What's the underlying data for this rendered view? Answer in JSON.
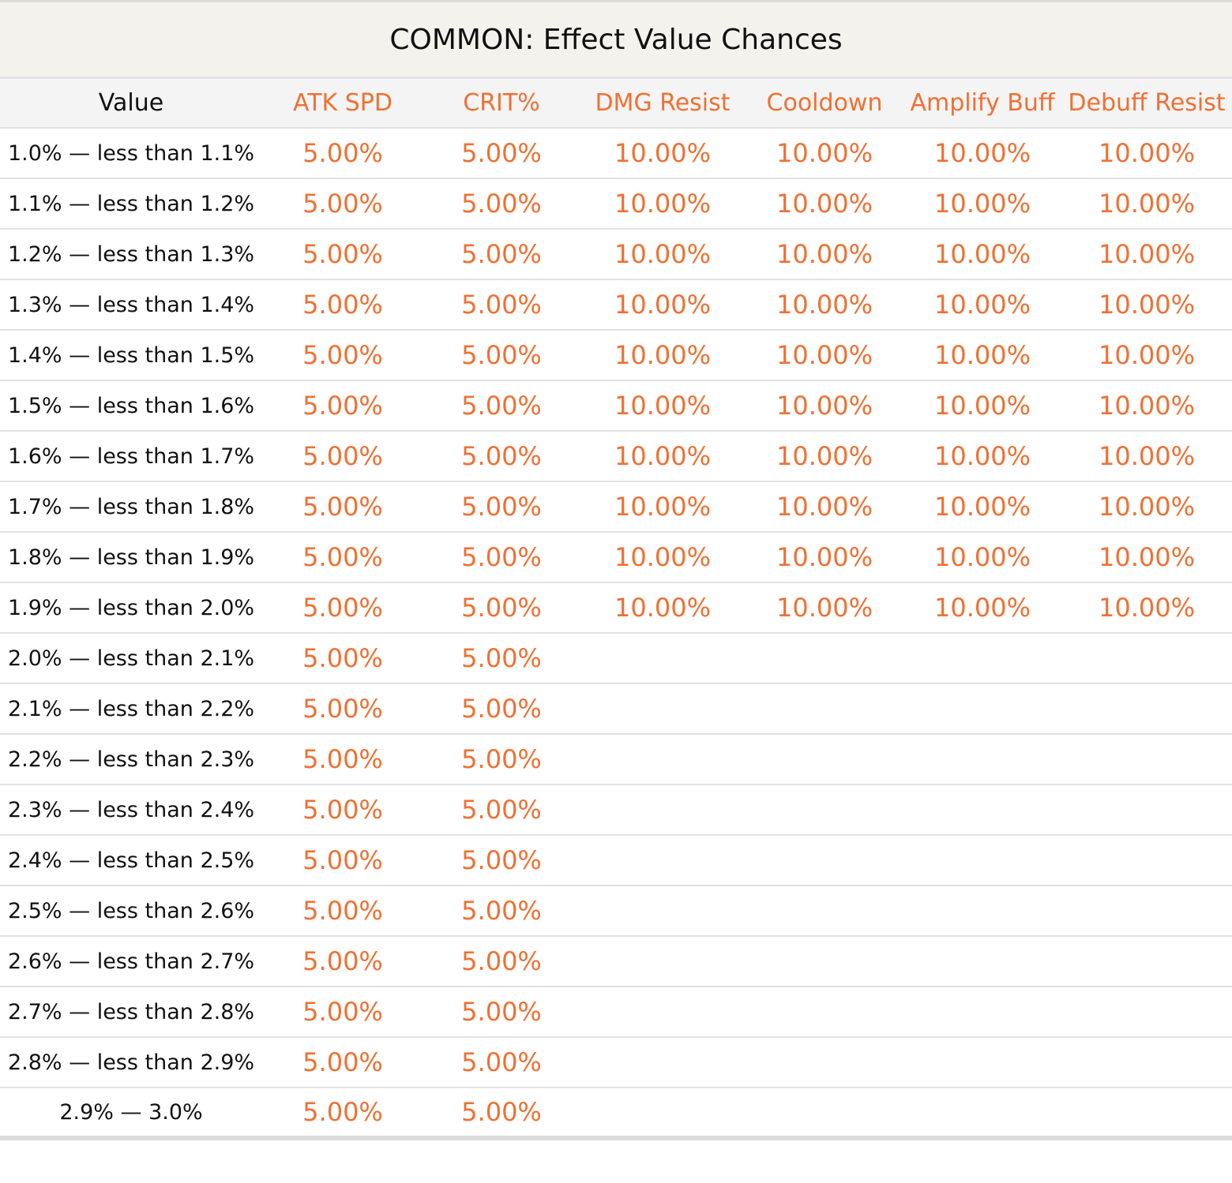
{
  "title": "COMMON: Effect Value Chances",
  "columns": [
    "Value",
    "ATK SPD",
    "CRIT%",
    "DMG Resist",
    "Cooldown",
    "Amplify Buff",
    "Debuff Resist"
  ],
  "rows": [
    {
      "value": "1.0% — less than 1.1%",
      "cells": [
        "5.00%",
        "5.00%",
        "10.00%",
        "10.00%",
        "10.00%",
        "10.00%"
      ]
    },
    {
      "value": "1.1% — less than 1.2%",
      "cells": [
        "5.00%",
        "5.00%",
        "10.00%",
        "10.00%",
        "10.00%",
        "10.00%"
      ]
    },
    {
      "value": "1.2% — less than 1.3%",
      "cells": [
        "5.00%",
        "5.00%",
        "10.00%",
        "10.00%",
        "10.00%",
        "10.00%"
      ]
    },
    {
      "value": "1.3% — less than 1.4%",
      "cells": [
        "5.00%",
        "5.00%",
        "10.00%",
        "10.00%",
        "10.00%",
        "10.00%"
      ]
    },
    {
      "value": "1.4% — less than 1.5%",
      "cells": [
        "5.00%",
        "5.00%",
        "10.00%",
        "10.00%",
        "10.00%",
        "10.00%"
      ]
    },
    {
      "value": "1.5% — less than 1.6%",
      "cells": [
        "5.00%",
        "5.00%",
        "10.00%",
        "10.00%",
        "10.00%",
        "10.00%"
      ]
    },
    {
      "value": "1.6% — less than 1.7%",
      "cells": [
        "5.00%",
        "5.00%",
        "10.00%",
        "10.00%",
        "10.00%",
        "10.00%"
      ]
    },
    {
      "value": "1.7% — less than 1.8%",
      "cells": [
        "5.00%",
        "5.00%",
        "10.00%",
        "10.00%",
        "10.00%",
        "10.00%"
      ]
    },
    {
      "value": "1.8% — less than 1.9%",
      "cells": [
        "5.00%",
        "5.00%",
        "10.00%",
        "10.00%",
        "10.00%",
        "10.00%"
      ]
    },
    {
      "value": "1.9% — less than 2.0%",
      "cells": [
        "5.00%",
        "5.00%",
        "10.00%",
        "10.00%",
        "10.00%",
        "10.00%"
      ]
    },
    {
      "value": "2.0% — less than 2.1%",
      "cells": [
        "5.00%",
        "5.00%",
        "",
        "",
        "",
        ""
      ]
    },
    {
      "value": "2.1% — less than 2.2%",
      "cells": [
        "5.00%",
        "5.00%",
        "",
        "",
        "",
        ""
      ]
    },
    {
      "value": "2.2% — less than 2.3%",
      "cells": [
        "5.00%",
        "5.00%",
        "",
        "",
        "",
        ""
      ]
    },
    {
      "value": "2.3% — less than 2.4%",
      "cells": [
        "5.00%",
        "5.00%",
        "",
        "",
        "",
        ""
      ]
    },
    {
      "value": "2.4% — less than 2.5%",
      "cells": [
        "5.00%",
        "5.00%",
        "",
        "",
        "",
        ""
      ]
    },
    {
      "value": "2.5% — less than 2.6%",
      "cells": [
        "5.00%",
        "5.00%",
        "",
        "",
        "",
        ""
      ]
    },
    {
      "value": "2.6% — less than 2.7%",
      "cells": [
        "5.00%",
        "5.00%",
        "",
        "",
        "",
        ""
      ]
    },
    {
      "value": "2.7% — less than 2.8%",
      "cells": [
        "5.00%",
        "5.00%",
        "",
        "",
        "",
        ""
      ]
    },
    {
      "value": "2.8% — less than 2.9%",
      "cells": [
        "5.00%",
        "5.00%",
        "",
        "",
        "",
        ""
      ]
    },
    {
      "value": "2.9% — 3.0%",
      "cells": [
        "5.00%",
        "5.00%",
        "",
        "",
        "",
        ""
      ]
    }
  ],
  "colors": {
    "accent": "#f07033",
    "text": "#111111",
    "title_bg": "#f4f2ed",
    "header_bg": "#f4f4f4",
    "rule": "#e2e2e2"
  }
}
